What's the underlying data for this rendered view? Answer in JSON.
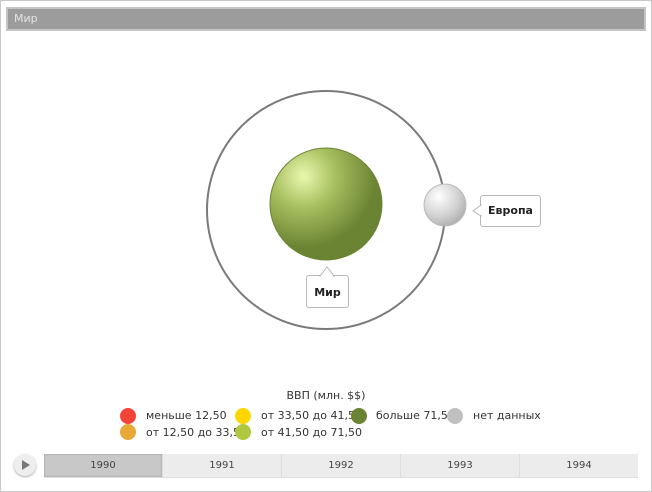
{
  "title": "Мир",
  "bubbles": {
    "center": {
      "label": "Мир",
      "color": "#6b8433"
    },
    "orbit": {
      "label": "Европа",
      "color": "#c0c0c0"
    }
  },
  "legend": {
    "title": "ВВП (млн. $$)",
    "items": [
      {
        "label": "меньше 12,50",
        "color": "#f44336"
      },
      {
        "label": "от 12,50 до 33,50",
        "color": "#e8a838"
      },
      {
        "label": "от 33,50 до 41,50",
        "color": "#ffd700"
      },
      {
        "label": "от 41,50 до 71,50",
        "color": "#b0c840"
      },
      {
        "label": "больше 71,50",
        "color": "#6b8433"
      },
      {
        "label": "нет данных",
        "color": "#c0c0c0"
      }
    ]
  },
  "timeline": {
    "years": [
      "1990",
      "1991",
      "1992",
      "1993",
      "1994"
    ],
    "selected": "1990"
  }
}
